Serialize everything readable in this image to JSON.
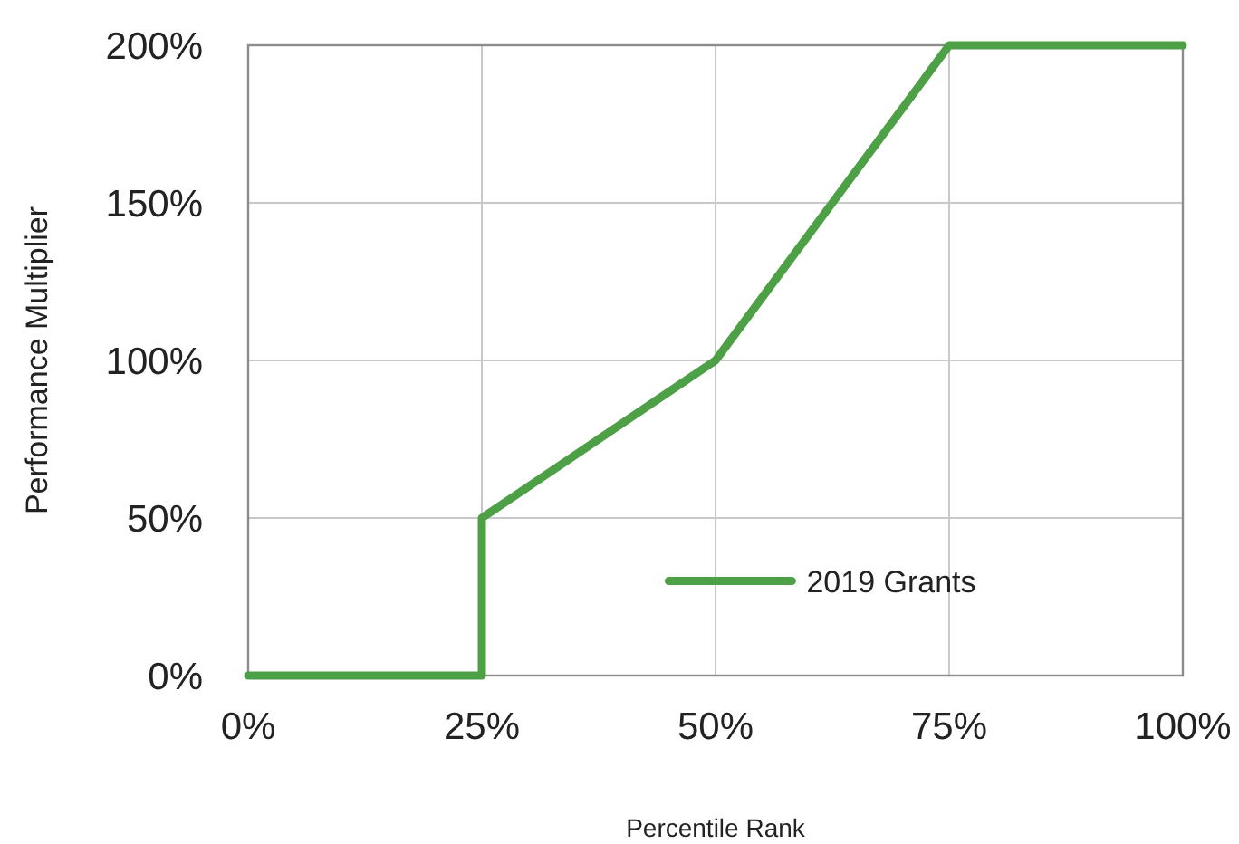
{
  "chart_data": {
    "type": "line",
    "xlabel": "Percentile Rank",
    "ylabel": "Performance Multiplier",
    "x": [
      0,
      25,
      25,
      50,
      75,
      100
    ],
    "series": [
      {
        "name": "2019 Grants",
        "color": "#4ea046",
        "values": [
          0,
          0,
          50,
          100,
          200,
          200
        ]
      }
    ],
    "xlim": [
      0,
      100
    ],
    "xticks": [
      {
        "value": 0,
        "label": "0%"
      },
      {
        "value": 25,
        "label": "25%"
      },
      {
        "value": 50,
        "label": "50%"
      },
      {
        "value": 75,
        "label": "75%"
      },
      {
        "value": 100,
        "label": "100%"
      }
    ],
    "ylim": [
      0,
      200
    ],
    "yticks": [
      {
        "value": 0,
        "label": "0%"
      },
      {
        "value": 50,
        "label": "50%"
      },
      {
        "value": 100,
        "label": "100%"
      },
      {
        "value": 150,
        "label": "150%"
      },
      {
        "value": 200,
        "label": "200%"
      }
    ],
    "grid": true,
    "legend": "bottom",
    "marker": "none",
    "line_style": "solid"
  }
}
